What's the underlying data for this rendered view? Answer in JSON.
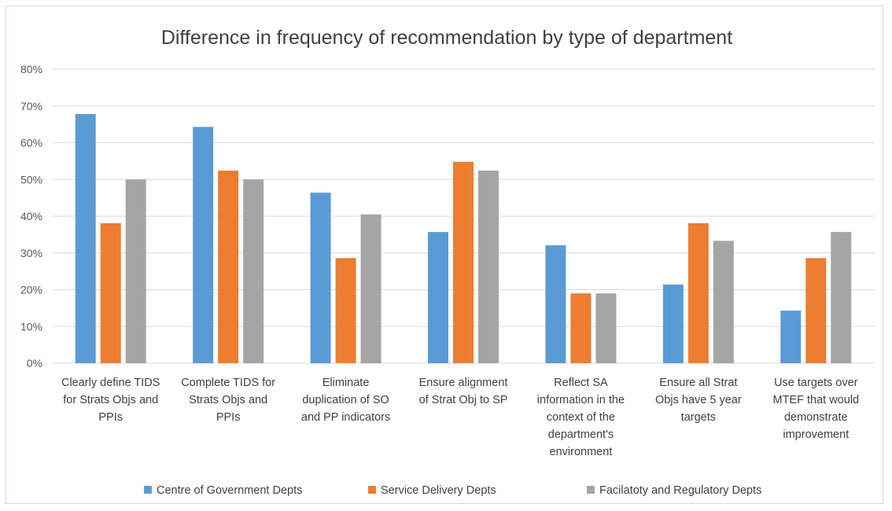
{
  "chart_data": {
    "type": "bar",
    "title": "Difference in frequency of recommendation by type of department",
    "xlabel": "",
    "ylabel": "",
    "ylim": [
      0,
      80
    ],
    "y_ticks": [
      "0%",
      "10%",
      "20%",
      "30%",
      "40%",
      "50%",
      "60%",
      "70%",
      "80%"
    ],
    "grid": true,
    "legend_position": "bottom",
    "categories": [
      [
        "Clearly define TIDS",
        "for Strats Objs and",
        "PPIs"
      ],
      [
        "Complete TIDS for",
        "Strats Objs and",
        "PPIs"
      ],
      [
        "Eliminate",
        "duplication of SO",
        "and PP indicators"
      ],
      [
        "Ensure alignment",
        "of Strat Obj to SP"
      ],
      [
        "Reflect SA",
        "information in the",
        "context of the",
        "department's",
        "environment"
      ],
      [
        "Ensure all Strat",
        "Objs have 5 year",
        "targets"
      ],
      [
        "Use targets over",
        "MTEF that would",
        "demonstrate",
        "improvement"
      ]
    ],
    "series": [
      {
        "name": "Centre of Government Depts",
        "color": "#5b9bd5",
        "values": [
          67.8,
          64.3,
          46.4,
          35.7,
          32.1,
          21.4,
          14.3
        ]
      },
      {
        "name": "Service Delivery Depts",
        "color": "#ed7d31",
        "values": [
          38.1,
          52.4,
          28.6,
          54.8,
          19.0,
          38.1,
          28.6
        ]
      },
      {
        "name": "Facilatoty and Regulatory Depts",
        "color": "#a5a5a5",
        "values": [
          50.0,
          50.0,
          40.5,
          52.4,
          19.0,
          33.3,
          35.7
        ]
      }
    ],
    "gridline_color": "#d9d9d9"
  }
}
